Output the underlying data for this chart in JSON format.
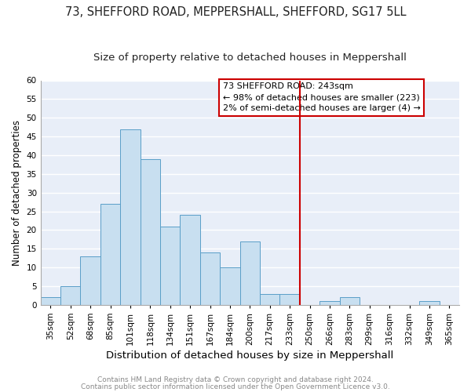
{
  "title1": "73, SHEFFORD ROAD, MEPPERSHALL, SHEFFORD, SG17 5LL",
  "title2": "Size of property relative to detached houses in Meppershall",
  "xlabel": "Distribution of detached houses by size in Meppershall",
  "ylabel": "Number of detached properties",
  "bin_labels": [
    "35sqm",
    "52sqm",
    "68sqm",
    "85sqm",
    "101sqm",
    "118sqm",
    "134sqm",
    "151sqm",
    "167sqm",
    "184sqm",
    "200sqm",
    "217sqm",
    "233sqm",
    "250sqm",
    "266sqm",
    "283sqm",
    "299sqm",
    "316sqm",
    "332sqm",
    "349sqm",
    "365sqm"
  ],
  "bar_values": [
    2,
    5,
    13,
    27,
    47,
    39,
    21,
    24,
    14,
    10,
    17,
    3,
    3,
    0,
    1,
    2,
    0,
    0,
    0,
    1,
    0
  ],
  "bar_color": "#c8dff0",
  "bar_edge_color": "#5a9ec8",
  "vline_color": "#cc0000",
  "vline_idx": 13,
  "ylim": [
    0,
    60
  ],
  "yticks": [
    0,
    5,
    10,
    15,
    20,
    25,
    30,
    35,
    40,
    45,
    50,
    55,
    60
  ],
  "legend_title": "73 SHEFFORD ROAD: 243sqm",
  "legend_line1": "← 98% of detached houses are smaller (223)",
  "legend_line2": "2% of semi-detached houses are larger (4) →",
  "footer1": "Contains HM Land Registry data © Crown copyright and database right 2024.",
  "footer2": "Contains public sector information licensed under the Open Government Licence v3.0.",
  "bg_color": "#e8eef8",
  "plot_bg_color": "#e8eef8",
  "grid_color": "#ffffff",
  "title1_fontsize": 10.5,
  "title2_fontsize": 9.5,
  "xlabel_fontsize": 9.5,
  "ylabel_fontsize": 8.5,
  "tick_fontsize": 7.5,
  "footer_fontsize": 6.5,
  "annot_fontsize": 8.0
}
